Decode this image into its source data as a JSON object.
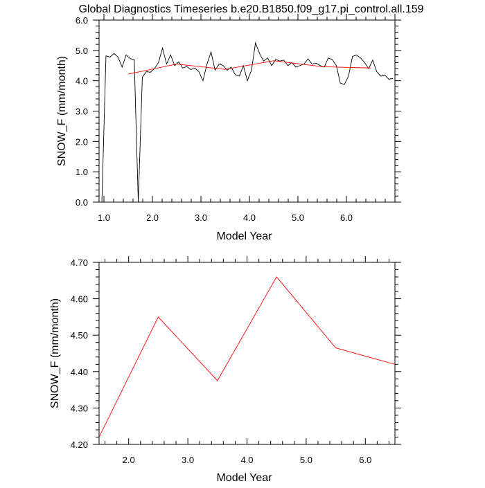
{
  "chart_data": [
    {
      "type": "line",
      "title": "Global Diagnostics Timeseries b.e20.B1850.f09_g17.pi_control.all.159",
      "xlabel": "Model Year",
      "ylabel": "SNOW_F (mm/month)",
      "xlim": [
        0.9,
        7.0
      ],
      "ylim": [
        0.0,
        6.0
      ],
      "xticks": [
        "1.0",
        "2.0",
        "3.0",
        "4.0",
        "5.0",
        "6.0"
      ],
      "yticks": [
        "0.0",
        "1.0",
        "2.0",
        "3.0",
        "4.0",
        "5.0",
        "6.0"
      ],
      "series": [
        {
          "color": "#000000",
          "x": [
            0.958,
            1.042,
            1.125,
            1.208,
            1.292,
            1.375,
            1.458,
            1.542,
            1.625,
            1.708,
            1.792,
            1.875,
            1.958,
            2.042,
            2.125,
            2.208,
            2.292,
            2.375,
            2.458,
            2.542,
            2.625,
            2.708,
            2.792,
            2.875,
            2.958,
            3.042,
            3.125,
            3.208,
            3.292,
            3.375,
            3.458,
            3.542,
            3.625,
            3.708,
            3.792,
            3.875,
            3.958,
            4.042,
            4.125,
            4.208,
            4.292,
            4.375,
            4.458,
            4.542,
            4.625,
            4.708,
            4.792,
            4.875,
            4.958,
            5.042,
            5.125,
            5.208,
            5.292,
            5.375,
            5.458,
            5.542,
            5.625,
            5.708,
            5.792,
            5.875,
            5.958,
            6.042,
            6.125,
            6.208,
            6.292,
            6.375,
            6.458,
            6.542,
            6.625,
            6.708,
            6.792,
            6.875,
            6.958
          ],
          "y": [
            0.0,
            4.82,
            4.78,
            4.9,
            4.78,
            4.45,
            4.85,
            4.73,
            4.7,
            0.0,
            4.12,
            4.3,
            4.28,
            4.4,
            4.6,
            5.08,
            4.55,
            4.85,
            4.5,
            4.62,
            4.42,
            4.47,
            4.37,
            4.42,
            4.3,
            4.0,
            4.55,
            4.95,
            4.35,
            4.55,
            4.5,
            4.35,
            4.45,
            4.2,
            4.15,
            4.5,
            4.0,
            4.35,
            5.25,
            4.9,
            4.65,
            4.75,
            4.5,
            4.7,
            4.65,
            4.68,
            4.5,
            4.6,
            4.45,
            4.5,
            4.55,
            4.72,
            4.55,
            4.58,
            4.5,
            4.45,
            4.75,
            4.7,
            4.5,
            3.92,
            3.88,
            4.15,
            4.8,
            4.85,
            4.75,
            4.6,
            4.4,
            4.68,
            4.3,
            4.15,
            4.18,
            4.05,
            4.08
          ]
        },
        {
          "color": "#ff0000",
          "x": [
            1.5,
            2.5,
            3.5,
            4.5,
            5.5,
            6.5
          ],
          "y": [
            4.22,
            4.55,
            4.375,
            4.66,
            4.465,
            4.42
          ]
        }
      ]
    },
    {
      "type": "line",
      "title": "",
      "xlabel": "Model Year",
      "ylabel": "SNOW_F (mm/month)",
      "xlim": [
        1.5,
        6.5
      ],
      "ylim": [
        4.2,
        4.7
      ],
      "xticks": [
        "2.0",
        "3.0",
        "4.0",
        "5.0",
        "6.0"
      ],
      "yticks": [
        "4.20",
        "4.30",
        "4.40",
        "4.50",
        "4.60",
        "4.70"
      ],
      "series": [
        {
          "color": "#ff0000",
          "x": [
            1.5,
            2.5,
            3.5,
            4.5,
            5.5,
            6.5
          ],
          "y": [
            4.22,
            4.55,
            4.375,
            4.66,
            4.465,
            4.42
          ]
        }
      ]
    }
  ]
}
